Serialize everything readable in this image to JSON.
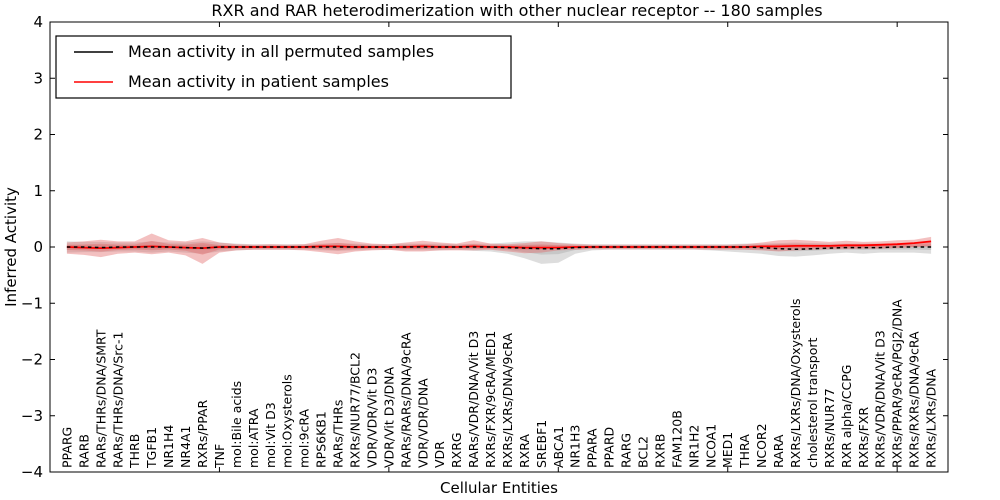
{
  "title": "RXR and RAR heterodimerization with other nuclear receptor -- 180 samples",
  "axes": {
    "xlabel": "Cellular Entities",
    "ylabel": "Inferred Activity"
  },
  "legend": {
    "items": [
      {
        "label": "Mean activity in all permuted samples",
        "color": "#000000"
      },
      {
        "label": "Mean activity in patient samples",
        "color": "#ff0000"
      }
    ]
  },
  "colors": {
    "permuted_line": "#000000",
    "patient_line": "#ff0000",
    "patient_band": "#e26a6a",
    "permuted_band": "#9e9e9e",
    "axis": "#000000"
  },
  "chart_data": {
    "type": "line",
    "title": "RXR and RAR heterodimerization with other nuclear receptor -- 180 samples",
    "xlabel": "Cellular Entities",
    "ylabel": "Inferred Activity",
    "ylim": [
      -4,
      4
    ],
    "ytick_labels": [
      "4",
      "3",
      "2",
      "1",
      "0",
      "−1",
      "−2",
      "−3",
      "−4"
    ],
    "ytick_values": [
      4,
      3,
      2,
      1,
      0,
      -1,
      -2,
      -3,
      -4
    ],
    "xtick_index_interval": 10,
    "grid": false,
    "legend_position": "upper left",
    "categories": [
      "PPARG",
      "RARB",
      "RARs/THRs/DNA/SMRT",
      "RARs/THRs/DNA/Src-1",
      "THRB",
      "TGFB1",
      "NR1H4",
      "NR4A1",
      "RXRs/PPAR",
      "TNF",
      "mol:Bile acids",
      "mol:ATRA",
      "mol:Vit D3",
      "mol:Oxysterols",
      "mol:9cRA",
      "RPS6KB1",
      "RARs/THRs",
      "RXRs/NUR77/BCL2",
      "VDR/VDR/Vit D3",
      "VDR/Vit D3/DNA",
      "RARs/RARs/DNA/9cRA",
      "VDR/VDR/DNA",
      "VDR",
      "RXRG",
      "RARs/VDR/DNA/Vit D3",
      "RXRs/FXR/9cRA/MED1",
      "RXRs/LXRs/DNA/9cRA",
      "RXRA",
      "SREBF1",
      "ABCA1",
      "NR1H3",
      "PPARA",
      "PPARD",
      "RARG",
      "BCL2",
      "RXRB",
      "FAM120B",
      "NR1H2",
      "NCOA1",
      "MED1",
      "THRA",
      "NCOR2",
      "RARA",
      "RXRs/LXRs/DNA/Oxysterols",
      "cholesterol transport",
      "RXRs/NUR77",
      "RXR alpha/CCPG",
      "RXRs/FXR",
      "RXRs/VDR/DNA/Vit D3",
      "RXRs/PPAR/9cRA/PGJ2/DNA",
      "RXRs/RXRs/DNA/9cRA",
      "RXRs/LXRs/DNA"
    ],
    "series": [
      {
        "name": "Mean activity in all permuted samples",
        "color": "#000000",
        "values": [
          0,
          0,
          -0.01,
          0,
          0,
          0,
          0,
          -0.01,
          -0.02,
          0,
          0,
          0,
          0,
          0,
          0,
          0,
          0,
          0,
          0,
          0,
          0,
          0,
          0,
          0,
          0,
          0,
          -0.01,
          -0.02,
          -0.03,
          -0.03,
          -0.01,
          0,
          0,
          0,
          0,
          0,
          0,
          0,
          0,
          0,
          0,
          -0.01,
          -0.03,
          -0.04,
          -0.03,
          -0.02,
          -0.01,
          -0.01,
          -0.01,
          0,
          0,
          0
        ]
      },
      {
        "name": "Mean activity in patient samples",
        "color": "#ff0000",
        "values": [
          0,
          -0.01,
          -0.02,
          -0.01,
          0,
          0.01,
          0,
          -0.01,
          -0.02,
          0,
          0,
          0,
          0,
          0,
          0,
          0.01,
          0.01,
          0,
          0,
          0,
          0,
          0.01,
          0,
          0,
          0.01,
          0,
          0,
          -0.01,
          -0.01,
          -0.01,
          0,
          0,
          0,
          0,
          0,
          0,
          0,
          0,
          0,
          0,
          0,
          0.01,
          0.01,
          0.02,
          0.02,
          0.02,
          0.03,
          0.03,
          0.04,
          0.05,
          0.07,
          0.1
        ]
      }
    ],
    "bands": [
      {
        "name": "permuted-samples-range",
        "color": "#9e9e9e",
        "opacity": 0.35,
        "upper": [
          0.1,
          0.09,
          0.09,
          0.08,
          0.08,
          0.1,
          0.08,
          0.08,
          0.1,
          0.08,
          0.06,
          0.05,
          0.05,
          0.05,
          0.05,
          0.06,
          0.07,
          0.06,
          0.05,
          0.05,
          0.06,
          0.06,
          0.06,
          0.05,
          0.06,
          0.06,
          0.08,
          0.1,
          0.1,
          0.08,
          0.06,
          0.05,
          0.05,
          0.05,
          0.05,
          0.05,
          0.05,
          0.05,
          0.05,
          0.05,
          0.06,
          0.06,
          0.07,
          0.08,
          0.07,
          0.06,
          0.06,
          0.06,
          0.06,
          0.06,
          0.05,
          0.06
        ],
        "lower": [
          -0.1,
          -0.09,
          -0.09,
          -0.08,
          -0.08,
          -0.1,
          -0.08,
          -0.1,
          -0.12,
          -0.08,
          -0.06,
          -0.05,
          -0.05,
          -0.05,
          -0.05,
          -0.06,
          -0.07,
          -0.06,
          -0.05,
          -0.05,
          -0.06,
          -0.06,
          -0.06,
          -0.05,
          -0.07,
          -0.08,
          -0.12,
          -0.2,
          -0.3,
          -0.28,
          -0.12,
          -0.06,
          -0.05,
          -0.05,
          -0.05,
          -0.05,
          -0.05,
          -0.05,
          -0.06,
          -0.08,
          -0.1,
          -0.12,
          -0.16,
          -0.17,
          -0.15,
          -0.12,
          -0.1,
          -0.12,
          -0.1,
          -0.1,
          -0.1,
          -0.12
        ]
      },
      {
        "name": "patient-samples-range",
        "color": "#e26a6a",
        "opacity": 0.42,
        "upper": [
          0.08,
          0.1,
          0.13,
          0.1,
          0.1,
          0.24,
          0.12,
          0.1,
          0.16,
          0.08,
          0.05,
          0.04,
          0.05,
          0.04,
          0.05,
          0.11,
          0.16,
          0.1,
          0.06,
          0.05,
          0.08,
          0.11,
          0.08,
          0.06,
          0.12,
          0.06,
          0.05,
          0.07,
          0.1,
          0.07,
          0.05,
          0.04,
          0.04,
          0.04,
          0.04,
          0.04,
          0.04,
          0.04,
          0.04,
          0.04,
          0.05,
          0.08,
          0.12,
          0.13,
          0.11,
          0.09,
          0.11,
          0.09,
          0.1,
          0.12,
          0.13,
          0.18
        ],
        "lower": [
          -0.12,
          -0.14,
          -0.18,
          -0.12,
          -0.1,
          -0.13,
          -0.1,
          -0.15,
          -0.3,
          -0.1,
          -0.06,
          -0.05,
          -0.05,
          -0.05,
          -0.06,
          -0.09,
          -0.13,
          -0.08,
          -0.06,
          -0.05,
          -0.08,
          -0.08,
          -0.06,
          -0.06,
          -0.06,
          -0.05,
          -0.08,
          -0.11,
          -0.1,
          -0.06,
          -0.05,
          -0.04,
          -0.04,
          -0.04,
          -0.04,
          -0.04,
          -0.04,
          -0.04,
          -0.05,
          -0.05,
          -0.05,
          -0.06,
          -0.08,
          -0.06,
          -0.05,
          -0.04,
          -0.04,
          -0.03,
          -0.03,
          -0.02,
          0.0,
          0.02
        ]
      }
    ]
  }
}
